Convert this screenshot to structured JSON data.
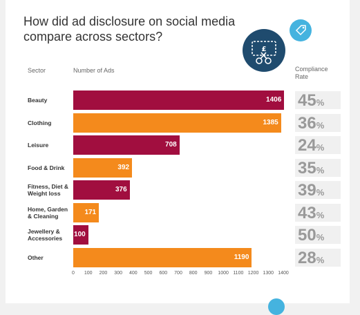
{
  "title": "How did ad disclosure on social media compare across sectors?",
  "headers": {
    "sector": "Sector",
    "ads": "Number of Ads",
    "rate": "Compliance Rate"
  },
  "rate_suffix": "%",
  "icons": [
    "ticket-scissors-icon",
    "price-tag-icon"
  ],
  "colors": {
    "crimson": "#a10e3f",
    "orange": "#f48a1c",
    "rate_text": "#999999",
    "badge_dark": "#1f4b6e",
    "badge_light": "#45b3df"
  },
  "chart_data": {
    "type": "bar",
    "orientation": "horizontal",
    "categories": [
      "Beauty",
      "Clothing",
      "Leisure",
      "Food & Drink",
      "Fitness, Diet & Weight loss",
      "Home, Garden & Cleaning",
      "Jewellery & Accessories",
      "Other"
    ],
    "values": [
      1406,
      1385,
      708,
      392,
      376,
      171,
      100,
      1190
    ],
    "bar_colors": [
      "#a10e3f",
      "#f48a1c",
      "#a10e3f",
      "#f48a1c",
      "#a10e3f",
      "#f48a1c",
      "#a10e3f",
      "#f48a1c"
    ],
    "compliance_rates": [
      45,
      36,
      24,
      35,
      39,
      43,
      50,
      28
    ],
    "xticks": [
      0,
      100,
      200,
      300,
      400,
      500,
      600,
      700,
      800,
      900,
      1000,
      1100,
      1200,
      1300,
      1400
    ],
    "xlim": [
      0,
      1400
    ],
    "xlabel": "Number of Ads",
    "ylabel": "Sector",
    "grid": false
  }
}
